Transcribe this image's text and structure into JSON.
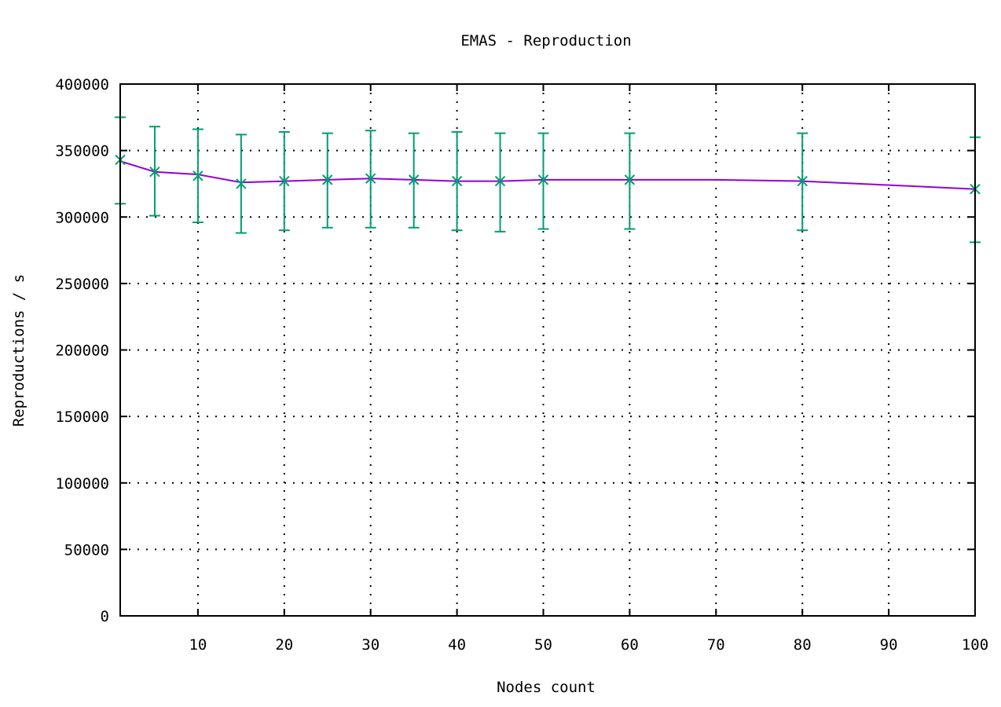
{
  "chart_data": {
    "type": "line",
    "title": "EMAS - Reproduction",
    "xlabel": "Nodes count",
    "ylabel": "Reproductions / s",
    "xlim": [
      1,
      100
    ],
    "ylim": [
      0,
      400000
    ],
    "x_ticks": [
      10,
      20,
      30,
      40,
      50,
      60,
      70,
      80,
      90,
      100
    ],
    "y_ticks": [
      0,
      50000,
      100000,
      150000,
      200000,
      250000,
      300000,
      350000,
      400000
    ],
    "grid": true,
    "legend": "none",
    "fit_curve": {
      "color": "#9400d3",
      "x": [
        1,
        5,
        10,
        15,
        20,
        25,
        30,
        35,
        40,
        45,
        50,
        60,
        70,
        80,
        90,
        100
      ],
      "y": [
        342000,
        334000,
        332000,
        326000,
        327000,
        328000,
        329000,
        328000,
        327000,
        327000,
        328000,
        328000,
        328000,
        327000,
        324000,
        321000
      ]
    },
    "series": [
      {
        "color": "#009e73",
        "x": [
          1,
          5,
          10,
          15,
          20,
          25,
          30,
          35,
          40,
          45,
          50,
          60,
          80,
          100
        ],
        "y": [
          343000,
          334000,
          331000,
          325000,
          327000,
          328000,
          329000,
          328000,
          327000,
          327000,
          328000,
          328000,
          327000,
          321000
        ],
        "error_low": [
          310000,
          301000,
          296000,
          288000,
          290000,
          292000,
          292000,
          292000,
          290000,
          289000,
          291000,
          291000,
          290000,
          281000
        ],
        "error_high": [
          375000,
          368000,
          366000,
          362000,
          364000,
          363000,
          365000,
          363000,
          364000,
          363000,
          363000,
          363000,
          363000,
          360000
        ]
      }
    ]
  }
}
